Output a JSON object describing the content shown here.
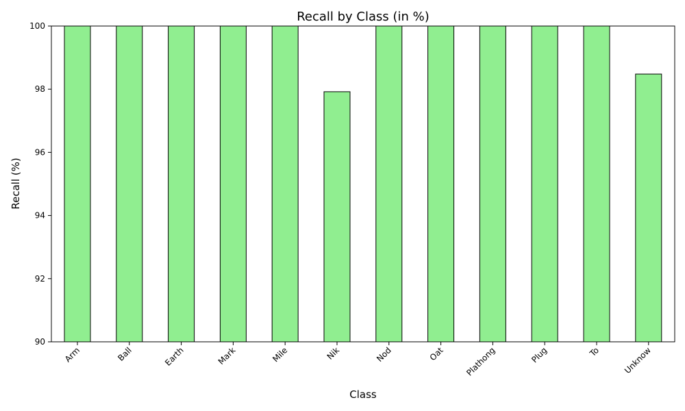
{
  "chart_data": {
    "type": "bar",
    "title": "Recall by Class (in %)",
    "xlabel": "Class",
    "ylabel": "Recall (%)",
    "categories": [
      "Arm",
      "Ball",
      "Earth",
      "Mark",
      "Mile",
      "Nik",
      "Nod",
      "Oat",
      "Plathong",
      "Plug",
      "To",
      "Unknow"
    ],
    "values": [
      100,
      100,
      100,
      100,
      100,
      97.92,
      100,
      100,
      100,
      100,
      100,
      98.48
    ],
    "ylim": [
      90,
      100
    ],
    "yticks": [
      90,
      92,
      94,
      96,
      98,
      100
    ],
    "grid": false,
    "legend": "none",
    "colors": {
      "bar_fill": "#90ee90",
      "bar_edge": "#000000"
    }
  }
}
